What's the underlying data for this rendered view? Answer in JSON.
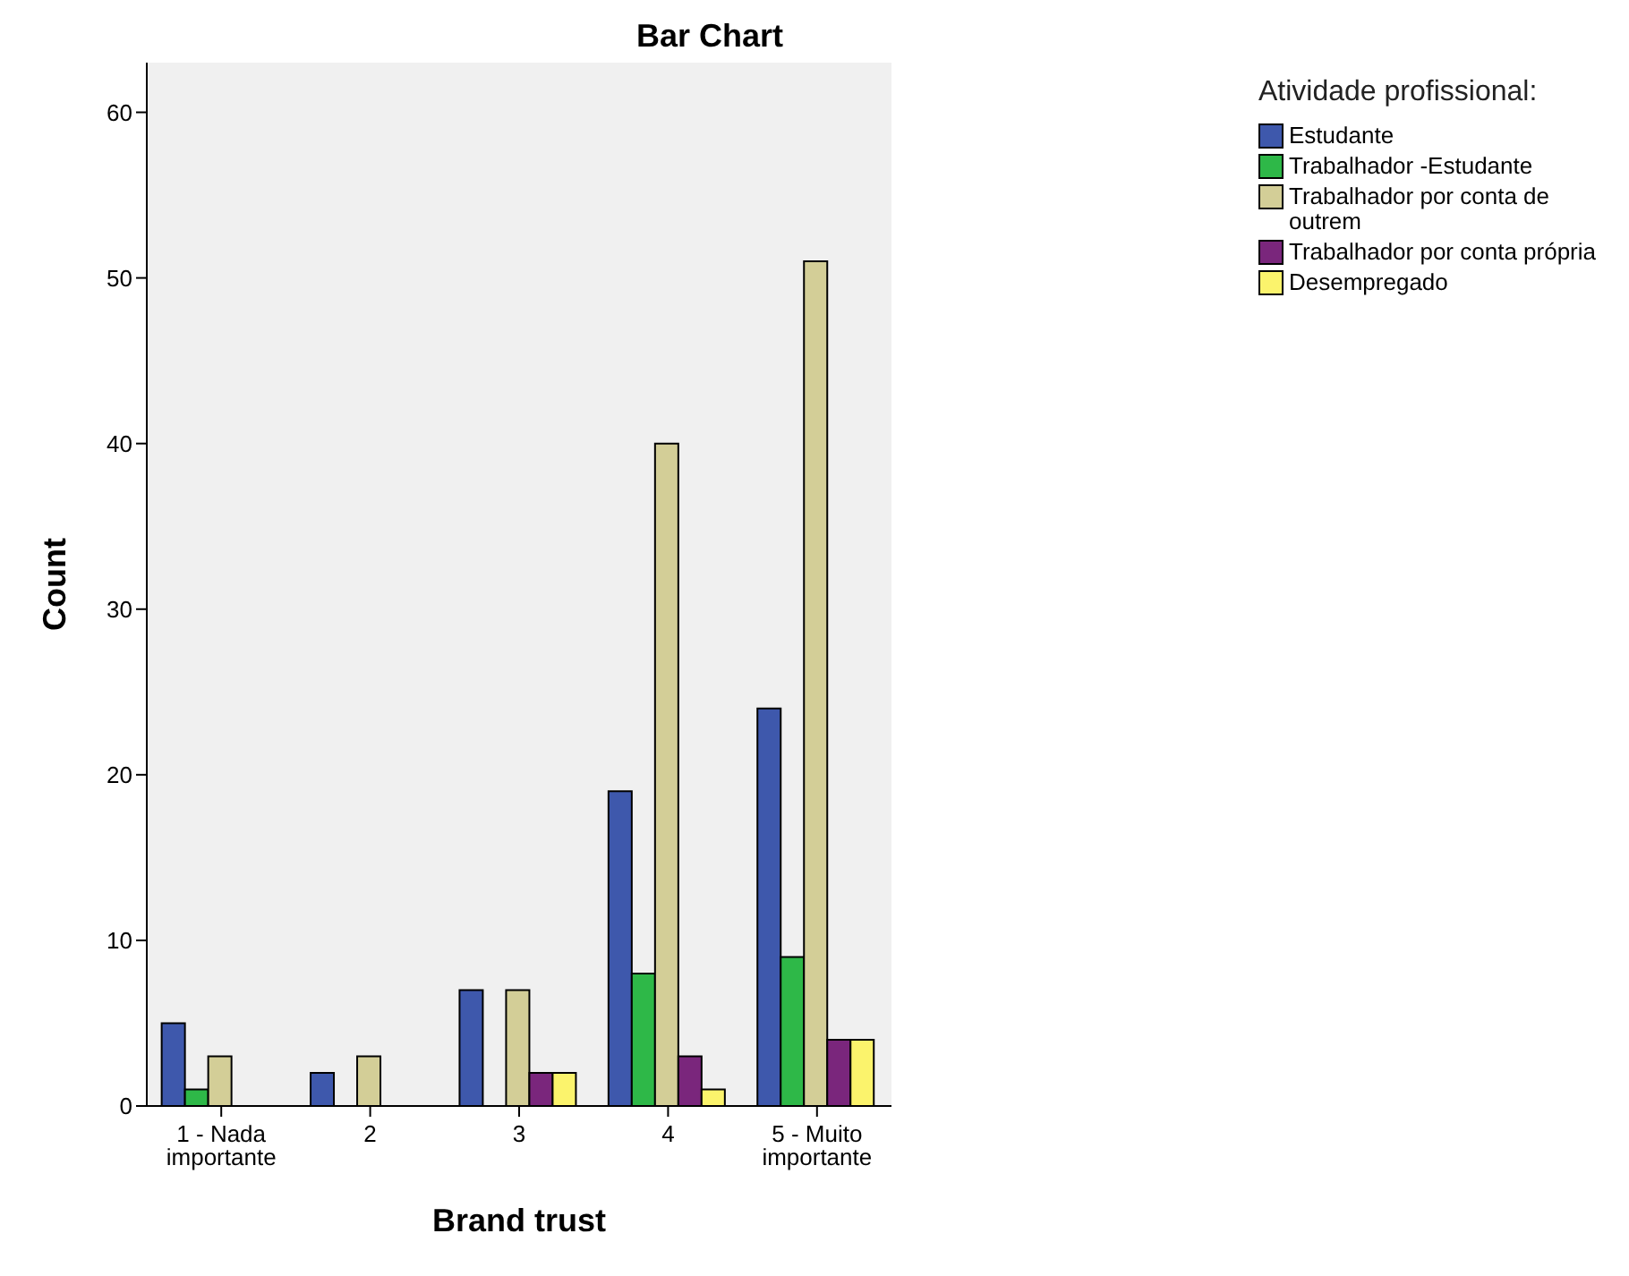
{
  "chart_data": {
    "type": "bar",
    "title": "Bar Chart",
    "xlabel": "Brand trust",
    "ylabel": "Count",
    "legend_title": "Atividade profissional:",
    "legend": "top right",
    "grid": false,
    "categories": [
      "1 - Nada importante",
      "2",
      "3",
      "4",
      "5 - Muito importante"
    ],
    "ylim": [
      0,
      63
    ],
    "yticks": [
      0,
      10,
      20,
      30,
      40,
      50,
      60
    ],
    "series": [
      {
        "name": "Estudante",
        "color": "#3e58ac",
        "values": [
          5,
          2,
          7,
          19,
          24
        ]
      },
      {
        "name": "Trabalhador -Estudante",
        "color": "#2eb848",
        "values": [
          1,
          null,
          null,
          8,
          9
        ]
      },
      {
        "name": "Trabalhador por conta de outrem",
        "color": "#d3ce97",
        "values": [
          3,
          3,
          7,
          40,
          51
        ]
      },
      {
        "name": "Trabalhador por conta própria",
        "color": "#7a267c",
        "values": [
          null,
          null,
          2,
          3,
          4
        ]
      },
      {
        "name": "Desempregado",
        "color": "#fbf36c",
        "values": [
          null,
          null,
          2,
          1,
          4
        ]
      }
    ]
  }
}
